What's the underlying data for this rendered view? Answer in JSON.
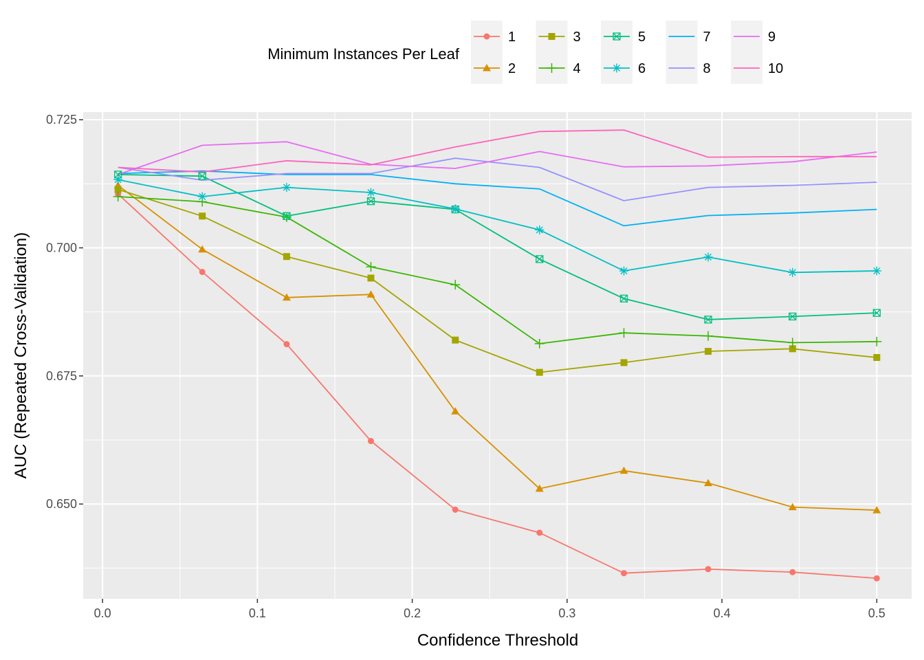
{
  "chart_data": {
    "type": "line",
    "xlabel": "Confidence Threshold",
    "ylabel": "AUC (Repeated Cross-Validation)",
    "xlim": [
      -0.0125,
      0.5225
    ],
    "ylim": [
      0.6315,
      0.7265
    ],
    "x_ticks": [
      0.0,
      0.1,
      0.2,
      0.3,
      0.4,
      0.5
    ],
    "x_tick_labels": [
      "0.0",
      "0.1",
      "0.2",
      "0.3",
      "0.4",
      "0.5"
    ],
    "y_ticks": [
      0.65,
      0.675,
      0.7,
      0.725
    ],
    "y_tick_labels": [
      "0.650",
      "0.675",
      "0.700",
      "0.725"
    ],
    "grid": true,
    "legend": {
      "title": "Minimum Instances Per Leaf",
      "position": "top"
    },
    "x": [
      0.01,
      0.0644,
      0.1189,
      0.1733,
      0.2278,
      0.2822,
      0.3367,
      0.3911,
      0.4456,
      0.5
    ],
    "series": [
      {
        "name": "1",
        "color": "#F8766D",
        "marker": "circle",
        "values": [
          0.7105,
          0.6953,
          0.6812,
          0.6623,
          0.6489,
          0.6444,
          0.6365,
          0.6373,
          0.6367,
          0.6355
        ]
      },
      {
        "name": "2",
        "color": "#D89000",
        "marker": "triangle",
        "values": [
          0.7122,
          0.6997,
          0.6903,
          0.6909,
          0.6681,
          0.653,
          0.6565,
          0.6541,
          0.6494,
          0.6488
        ]
      },
      {
        "name": "3",
        "color": "#A3A500",
        "marker": "square",
        "values": [
          0.7114,
          0.7062,
          0.6983,
          0.6941,
          0.682,
          0.6757,
          0.6776,
          0.6798,
          0.6803,
          0.6786
        ]
      },
      {
        "name": "4",
        "color": "#39B600",
        "marker": "plus",
        "values": [
          0.71,
          0.709,
          0.706,
          0.6963,
          0.6928,
          0.6813,
          0.6834,
          0.6828,
          0.6815,
          0.6817
        ]
      },
      {
        "name": "5",
        "color": "#00BF7D",
        "marker": "square-cross",
        "values": [
          0.7143,
          0.714,
          0.7062,
          0.7091,
          0.7075,
          0.6978,
          0.6901,
          0.686,
          0.6866,
          0.6873
        ]
      },
      {
        "name": "6",
        "color": "#00BFC4",
        "marker": "asterisk",
        "values": [
          0.7133,
          0.71,
          0.7118,
          0.7108,
          0.7076,
          0.7035,
          0.6955,
          0.6982,
          0.6952,
          0.6955
        ]
      },
      {
        "name": "7",
        "color": "#00B0F6",
        "marker": "none",
        "values": [
          0.7145,
          0.715,
          0.7143,
          0.7143,
          0.7125,
          0.7115,
          0.7043,
          0.7063,
          0.7068,
          0.7075
        ]
      },
      {
        "name": "8",
        "color": "#9590FF",
        "marker": "none",
        "values": [
          0.7157,
          0.7132,
          0.7145,
          0.7145,
          0.7175,
          0.7157,
          0.7092,
          0.7118,
          0.7122,
          0.7128
        ]
      },
      {
        "name": "9",
        "color": "#E76BF3",
        "marker": "none",
        "values": [
          0.7143,
          0.72,
          0.7207,
          0.7163,
          0.7155,
          0.7188,
          0.7158,
          0.716,
          0.7168,
          0.7187
        ]
      },
      {
        "name": "10",
        "color": "#FF62BC",
        "marker": "none",
        "values": [
          0.7157,
          0.7148,
          0.717,
          0.7162,
          0.7197,
          0.7227,
          0.723,
          0.7177,
          0.7178,
          0.7178
        ]
      }
    ]
  }
}
